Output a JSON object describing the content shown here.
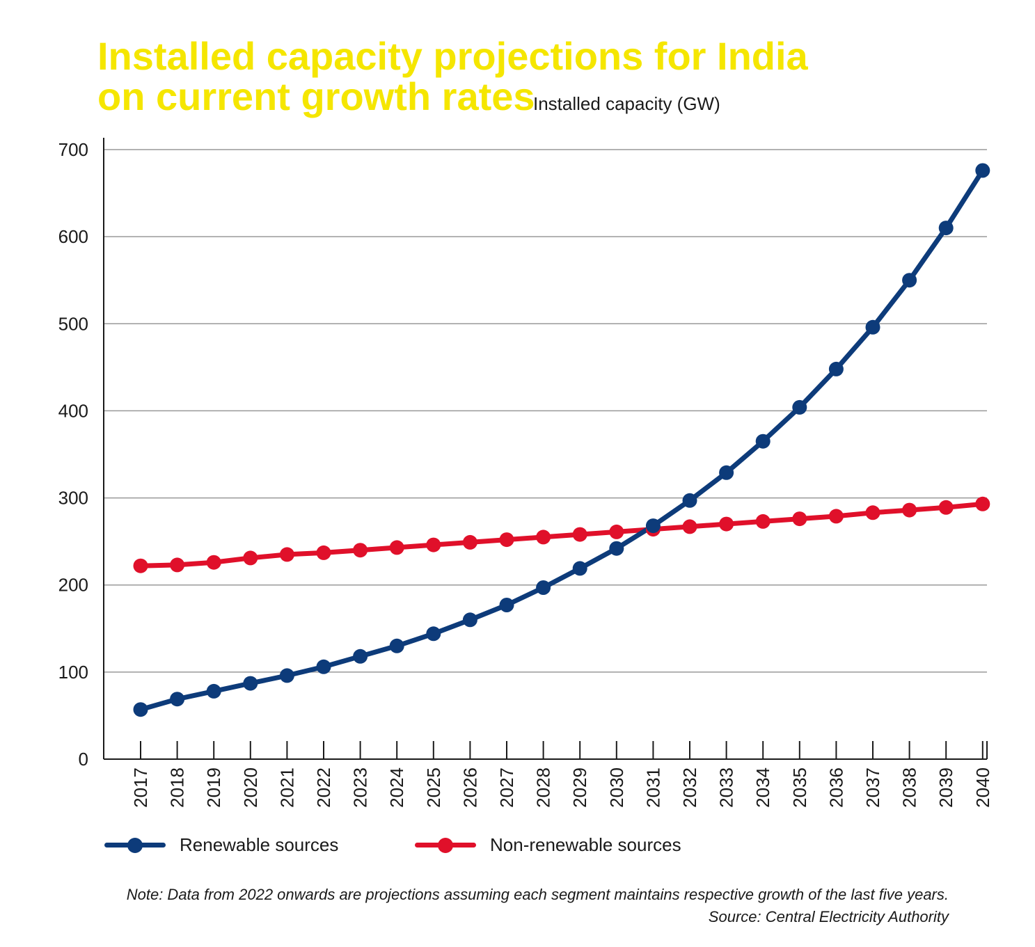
{
  "chart_data": {
    "type": "line",
    "title": "Installed capacity projections for India on current growth rates",
    "title_lines": [
      "Installed capacity projections for India",
      "on current growth rates"
    ],
    "ylabel": "Installed capacity (GW)",
    "xlabel": "",
    "ylim": [
      0,
      700
    ],
    "yticks": [
      0,
      100,
      200,
      300,
      400,
      500,
      600,
      700
    ],
    "grid": true,
    "legend_position": "bottom-left",
    "x": [
      "2017",
      "2018",
      "2019",
      "2020",
      "2021",
      "2022",
      "2023",
      "2024",
      "2025",
      "2026",
      "2027",
      "2028",
      "2029",
      "2030",
      "2031",
      "2032",
      "2033",
      "2034",
      "2035",
      "2036",
      "2037",
      "2038",
      "2039",
      "2040"
    ],
    "series": [
      {
        "name": "Renewable sources",
        "color": "#0d3b7a",
        "values": [
          57,
          69,
          78,
          87,
          96,
          106,
          118,
          130,
          144,
          160,
          177,
          197,
          219,
          242,
          268,
          297,
          329,
          365,
          404,
          448,
          496,
          550,
          610,
          676
        ]
      },
      {
        "name": "Non-renewable sources",
        "color": "#e0102a",
        "values": [
          222,
          223,
          226,
          231,
          235,
          237,
          240,
          243,
          246,
          249,
          252,
          255,
          258,
          261,
          264,
          267,
          270,
          273,
          276,
          279,
          283,
          286,
          289,
          293
        ]
      }
    ]
  },
  "note": "Note: Data from 2022 onwards are projections assuming each segment maintains respective growth of the last five years.",
  "source": "Source: Central Electricity Authority",
  "colors": {
    "title": "#f5e600",
    "grid": "#999999",
    "axis": "#1a1a1a"
  }
}
